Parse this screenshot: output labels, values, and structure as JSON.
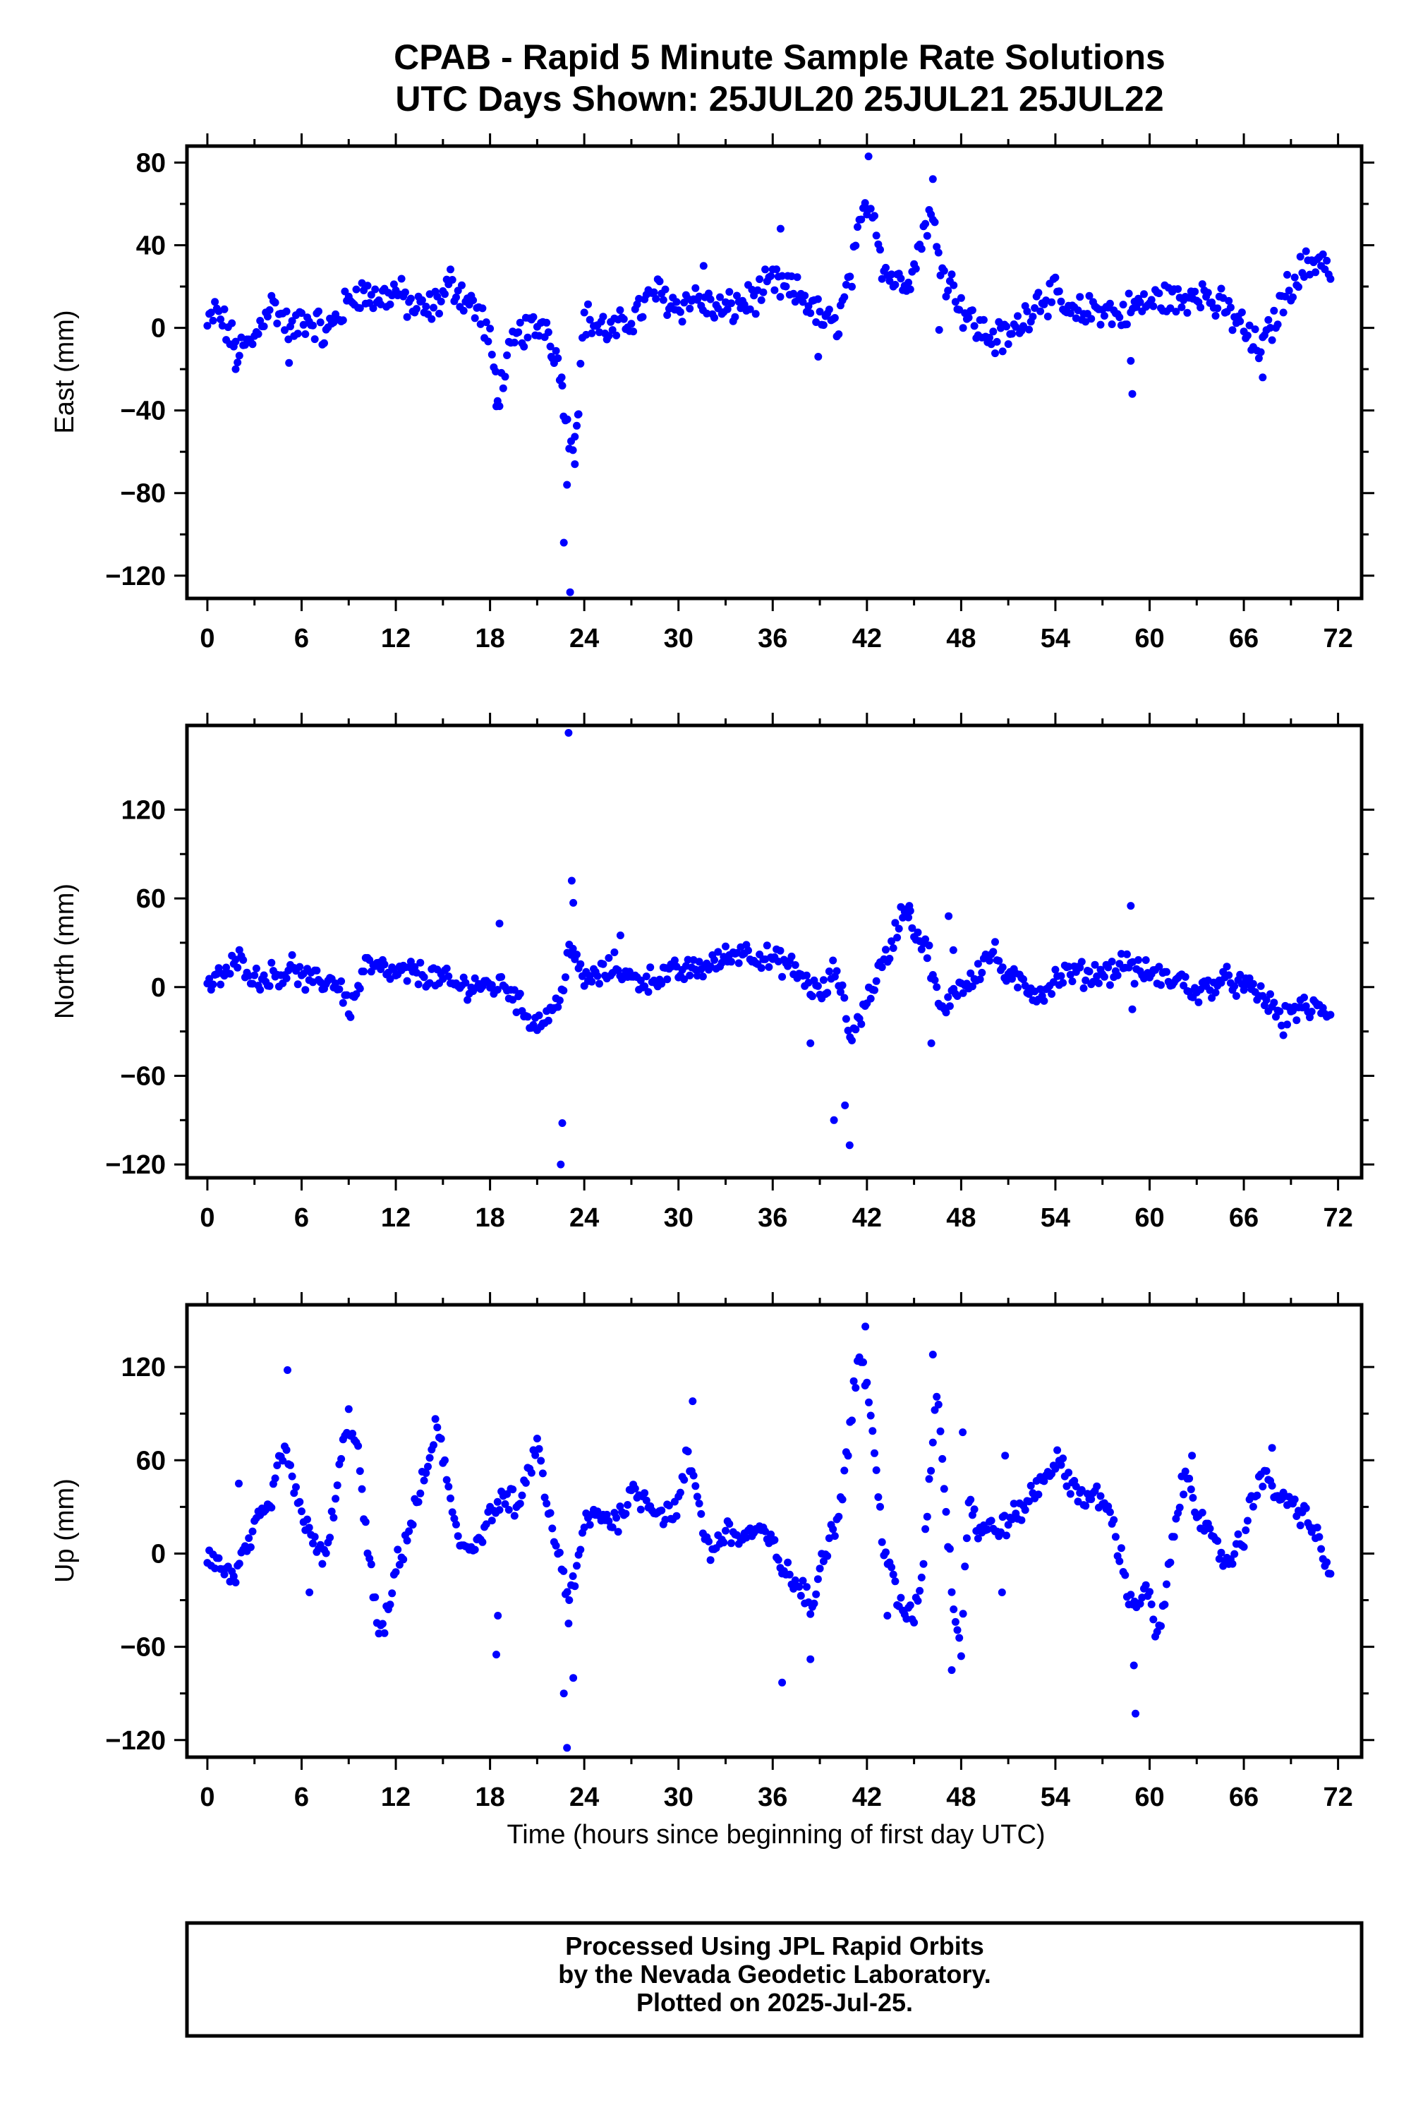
{
  "header": {
    "title_line1": "CPAB - Rapid 5 Minute Sample Rate Solutions",
    "title_line2": "UTC Days Shown:  25JUL20 25JUL21 25JUL22"
  },
  "footer": {
    "line1": "Processed Using JPL Rapid Orbits",
    "line2": "by the Nevada Geodetic Laboratory.",
    "line3": "Plotted on 2025-Jul-25."
  },
  "colors": {
    "points": "#0000ff",
    "frame": "#000000"
  },
  "chart_data": [
    {
      "type": "scatter",
      "title": "",
      "xlabel": "",
      "ylabel": "East (mm)",
      "xlim": [
        -1.3,
        73.5
      ],
      "ylim": [
        -131,
        88
      ],
      "xticks": [
        0,
        6,
        12,
        18,
        24,
        30,
        36,
        42,
        48,
        54,
        60,
        66,
        72
      ],
      "yticks": [
        -120,
        -80,
        -40,
        0,
        40,
        80
      ],
      "yticklabels": [
        "−120",
        "−80",
        "−40",
        "0",
        "40",
        "80"
      ],
      "grid": false,
      "anchors": [
        [
          0,
          0
        ],
        [
          0.5,
          8
        ],
        [
          1,
          3
        ],
        [
          1.5,
          -5
        ],
        [
          2,
          -12
        ],
        [
          2.5,
          -9
        ],
        [
          3,
          -6
        ],
        [
          3.5,
          5
        ],
        [
          4,
          12
        ],
        [
          4.5,
          8
        ],
        [
          5,
          2
        ],
        [
          5.5,
          -3
        ],
        [
          6,
          5
        ],
        [
          7,
          2
        ],
        [
          7.5,
          -5
        ],
        [
          8,
          3
        ],
        [
          9,
          12
        ],
        [
          9.5,
          18
        ],
        [
          10,
          16
        ],
        [
          11,
          14
        ],
        [
          12,
          18
        ],
        [
          13,
          10
        ],
        [
          14,
          8
        ],
        [
          15,
          15
        ],
        [
          15.5,
          22
        ],
        [
          16,
          18
        ],
        [
          17,
          10
        ],
        [
          17.5,
          4
        ],
        [
          18,
          -8
        ],
        [
          18.5,
          -32
        ],
        [
          19,
          -20
        ],
        [
          19.5,
          -8
        ],
        [
          20,
          -2
        ],
        [
          21,
          0
        ],
        [
          21.5,
          3
        ],
        [
          22,
          -8
        ],
        [
          22.5,
          -22
        ],
        [
          23,
          -55
        ],
        [
          23.5,
          -48
        ],
        [
          24,
          5
        ],
        [
          25,
          0
        ],
        [
          26,
          -2
        ],
        [
          27,
          5
        ],
        [
          28,
          12
        ],
        [
          28.5,
          18
        ],
        [
          30,
          10
        ],
        [
          31,
          15
        ],
        [
          32,
          10
        ],
        [
          33,
          8
        ],
        [
          34,
          12
        ],
        [
          35,
          15
        ],
        [
          36,
          22
        ],
        [
          37,
          18
        ],
        [
          38,
          15
        ],
        [
          38.5,
          10
        ],
        [
          39,
          5
        ],
        [
          40,
          0
        ],
        [
          41,
          25
        ],
        [
          41.5,
          45
        ],
        [
          42,
          62
        ],
        [
          42.5,
          55
        ],
        [
          43,
          30
        ],
        [
          43.5,
          25
        ],
        [
          44,
          22
        ],
        [
          45,
          28
        ],
        [
          45.5,
          45
        ],
        [
          46,
          55
        ],
        [
          46.5,
          40
        ],
        [
          47,
          25
        ],
        [
          47.5,
          20
        ],
        [
          48,
          10
        ],
        [
          49,
          0
        ],
        [
          50,
          -5
        ],
        [
          51,
          -5
        ],
        [
          52,
          5
        ],
        [
          53,
          15
        ],
        [
          54,
          15
        ],
        [
          55,
          5
        ],
        [
          56,
          8
        ],
        [
          57,
          10
        ],
        [
          58,
          5
        ],
        [
          58.5,
          8
        ],
        [
          59,
          10
        ],
        [
          60,
          12
        ],
        [
          61,
          15
        ],
        [
          62,
          12
        ],
        [
          63,
          20
        ],
        [
          64,
          12
        ],
        [
          65,
          8
        ],
        [
          66,
          0
        ],
        [
          66.5,
          -8
        ],
        [
          67,
          -10
        ],
        [
          67.5,
          -5
        ],
        [
          68,
          5
        ],
        [
          69,
          22
        ],
        [
          70,
          30
        ],
        [
          71,
          35
        ],
        [
          71.5,
          25
        ]
      ],
      "spikes": [
        [
          1.8,
          -20
        ],
        [
          5.2,
          -17
        ],
        [
          18.4,
          -38
        ],
        [
          21.9,
          -14
        ],
        [
          22.6,
          -28
        ],
        [
          22.7,
          -104
        ],
        [
          22.9,
          -76
        ],
        [
          23.1,
          -128
        ],
        [
          23.4,
          -66
        ],
        [
          23.6,
          -42
        ],
        [
          36.5,
          48
        ],
        [
          38.9,
          -14
        ],
        [
          42.1,
          83
        ],
        [
          46.2,
          72
        ],
        [
          46.6,
          -1
        ],
        [
          58.9,
          -32
        ],
        [
          58.8,
          -16
        ],
        [
          67.2,
          -24
        ],
        [
          31.6,
          30
        ]
      ]
    },
    {
      "type": "scatter",
      "title": "",
      "xlabel": "",
      "ylabel": "North (mm)",
      "xlim": [
        -1.3,
        73.5
      ],
      "ylim": [
        -129,
        177
      ],
      "xticks": [
        0,
        6,
        12,
        18,
        24,
        30,
        36,
        42,
        48,
        54,
        60,
        66,
        72
      ],
      "yticks": [
        -120,
        -60,
        0,
        60,
        120
      ],
      "yticklabels": [
        "−120",
        "−60",
        "0",
        "60",
        "120"
      ],
      "grid": false,
      "anchors": [
        [
          0,
          0
        ],
        [
          1,
          8
        ],
        [
          2,
          18
        ],
        [
          2.5,
          15
        ],
        [
          3,
          5
        ],
        [
          4,
          8
        ],
        [
          5,
          10
        ],
        [
          5.5,
          15
        ],
        [
          6,
          5
        ],
        [
          7,
          3
        ],
        [
          8,
          5
        ],
        [
          8.5,
          0
        ],
        [
          9,
          -15
        ],
        [
          9.5,
          -5
        ],
        [
          10,
          15
        ],
        [
          11,
          12
        ],
        [
          12,
          8
        ],
        [
          13,
          10
        ],
        [
          14,
          8
        ],
        [
          15,
          5
        ],
        [
          16,
          0
        ],
        [
          17,
          2
        ],
        [
          18,
          0
        ],
        [
          19,
          2
        ],
        [
          19.5,
          -5
        ],
        [
          20,
          -15
        ],
        [
          21,
          -25
        ],
        [
          21.5,
          -20
        ],
        [
          22,
          -15
        ],
        [
          22.5,
          -10
        ],
        [
          23,
          30
        ],
        [
          23.5,
          15
        ],
        [
          24,
          5
        ],
        [
          25,
          8
        ],
        [
          26,
          15
        ],
        [
          27,
          5
        ],
        [
          28,
          5
        ],
        [
          29,
          8
        ],
        [
          30,
          10
        ],
        [
          31,
          12
        ],
        [
          32,
          15
        ],
        [
          33,
          20
        ],
        [
          34,
          25
        ],
        [
          35,
          22
        ],
        [
          36,
          18
        ],
        [
          37,
          15
        ],
        [
          37.5,
          10
        ],
        [
          38,
          5
        ],
        [
          39,
          -5
        ],
        [
          39.5,
          0
        ],
        [
          40,
          15
        ],
        [
          40.5,
          -10
        ],
        [
          41,
          -35
        ],
        [
          41.5,
          -20
        ],
        [
          42,
          -10
        ],
        [
          42.5,
          5
        ],
        [
          43,
          15
        ],
        [
          43.5,
          25
        ],
        [
          44,
          45
        ],
        [
          44.5,
          55
        ],
        [
          45,
          40
        ],
        [
          45.5,
          30
        ],
        [
          46,
          20
        ],
        [
          46.5,
          -10
        ],
        [
          47,
          -20
        ],
        [
          47.5,
          0
        ],
        [
          48,
          0
        ],
        [
          49,
          10
        ],
        [
          50,
          25
        ],
        [
          51,
          5
        ],
        [
          52,
          2
        ],
        [
          53,
          -5
        ],
        [
          54,
          5
        ],
        [
          55,
          10
        ],
        [
          56,
          8
        ],
        [
          57,
          10
        ],
        [
          58,
          12
        ],
        [
          58.5,
          20
        ],
        [
          59,
          10
        ],
        [
          60,
          10
        ],
        [
          61,
          5
        ],
        [
          62,
          5
        ],
        [
          63,
          -5
        ],
        [
          64,
          2
        ],
        [
          65,
          5
        ],
        [
          66,
          0
        ],
        [
          67,
          -5
        ],
        [
          68,
          -15
        ],
        [
          68.5,
          -25
        ],
        [
          69,
          -15
        ],
        [
          70,
          -15
        ],
        [
          71,
          -15
        ],
        [
          71.5,
          -18
        ]
      ],
      "spikes": [
        [
          18.6,
          43
        ],
        [
          22.6,
          -92
        ],
        [
          22.5,
          -120
        ],
        [
          23.0,
          172
        ],
        [
          23.2,
          72
        ],
        [
          23.3,
          57
        ],
        [
          26.3,
          35
        ],
        [
          38.4,
          -38
        ],
        [
          39.9,
          -90
        ],
        [
          40.6,
          -80
        ],
        [
          40.9,
          -107
        ],
        [
          44.7,
          55
        ],
        [
          46.1,
          -38
        ],
        [
          47.2,
          48
        ],
        [
          47.5,
          25
        ],
        [
          58.8,
          55
        ],
        [
          58.9,
          -15
        ]
      ]
    },
    {
      "type": "scatter",
      "title": "",
      "xlabel": "Time (hours since beginning of first day UTC)",
      "ylabel": "Up (mm)",
      "xlim": [
        -1.3,
        73.5
      ],
      "ylim": [
        -131,
        160
      ],
      "xticks": [
        0,
        6,
        12,
        18,
        24,
        30,
        36,
        42,
        48,
        54,
        60,
        66,
        72
      ],
      "yticks": [
        -120,
        -60,
        0,
        60,
        120
      ],
      "yticklabels": [
        "−120",
        "−60",
        "0",
        "60",
        "120"
      ],
      "grid": false,
      "anchors": [
        [
          0,
          0
        ],
        [
          1,
          -10
        ],
        [
          1.5,
          -15
        ],
        [
          2,
          -10
        ],
        [
          3,
          15
        ],
        [
          4,
          30
        ],
        [
          4.5,
          55
        ],
        [
          5,
          70
        ],
        [
          5.5,
          40
        ],
        [
          6,
          25
        ],
        [
          6.5,
          20
        ],
        [
          7,
          0
        ],
        [
          7.5,
          -5
        ],
        [
          8,
          25
        ],
        [
          8.5,
          60
        ],
        [
          9,
          85
        ],
        [
          9.5,
          75
        ],
        [
          10,
          20
        ],
        [
          10.5,
          -20
        ],
        [
          11,
          -55
        ],
        [
          11.5,
          -40
        ],
        [
          12,
          -10
        ],
        [
          13,
          20
        ],
        [
          14,
          55
        ],
        [
          14.5,
          80
        ],
        [
          15,
          65
        ],
        [
          15.5,
          30
        ],
        [
          16,
          5
        ],
        [
          17,
          5
        ],
        [
          18,
          25
        ],
        [
          19,
          35
        ],
        [
          20,
          30
        ],
        [
          20.5,
          55
        ],
        [
          21,
          70
        ],
        [
          21.5,
          40
        ],
        [
          22,
          10
        ],
        [
          22.5,
          -5
        ],
        [
          23,
          -30
        ],
        [
          23.5,
          -15
        ],
        [
          24,
          20
        ],
        [
          25,
          25
        ],
        [
          26,
          20
        ],
        [
          27,
          40
        ],
        [
          28,
          35
        ],
        [
          29,
          25
        ],
        [
          30,
          30
        ],
        [
          30.5,
          60
        ],
        [
          31,
          50
        ],
        [
          31.5,
          20
        ],
        [
          32,
          0
        ],
        [
          33,
          15
        ],
        [
          34,
          10
        ],
        [
          35,
          15
        ],
        [
          36,
          5
        ],
        [
          37,
          -15
        ],
        [
          38,
          -25
        ],
        [
          38.5,
          -40
        ],
        [
          39,
          -5
        ],
        [
          40,
          20
        ],
        [
          40.5,
          45
        ],
        [
          41,
          90
        ],
        [
          41.5,
          130
        ],
        [
          42,
          110
        ],
        [
          42.5,
          60
        ],
        [
          43,
          10
        ],
        [
          43.5,
          -10
        ],
        [
          44,
          -35
        ],
        [
          45,
          -40
        ],
        [
          45.5,
          -15
        ],
        [
          46,
          50
        ],
        [
          46.5,
          110
        ],
        [
          47,
          30
        ],
        [
          47.5,
          -30
        ],
        [
          48,
          -60
        ],
        [
          48.5,
          40
        ],
        [
          49,
          15
        ],
        [
          50,
          15
        ],
        [
          51,
          20
        ],
        [
          52,
          30
        ],
        [
          53,
          45
        ],
        [
          54,
          60
        ],
        [
          55,
          45
        ],
        [
          56,
          35
        ],
        [
          57,
          35
        ],
        [
          57.5,
          25
        ],
        [
          58,
          5
        ],
        [
          58.5,
          -20
        ],
        [
          59,
          -35
        ],
        [
          59.5,
          -25
        ],
        [
          60,
          -30
        ],
        [
          60.5,
          -55
        ],
        [
          61,
          -30
        ],
        [
          61.5,
          10
        ],
        [
          62,
          40
        ],
        [
          62.5,
          50
        ],
        [
          63,
          30
        ],
        [
          64,
          5
        ],
        [
          65,
          -5
        ],
        [
          66,
          10
        ],
        [
          66.5,
          35
        ],
        [
          67,
          50
        ],
        [
          68,
          40
        ],
        [
          69,
          30
        ],
        [
          70,
          25
        ],
        [
          71,
          0
        ],
        [
          71.5,
          -15
        ]
      ],
      "spikes": [
        [
          2,
          45
        ],
        [
          5.1,
          118
        ],
        [
          6.5,
          -25
        ],
        [
          18.4,
          -65
        ],
        [
          18.5,
          -40
        ],
        [
          22.7,
          -90
        ],
        [
          22.9,
          -125
        ],
        [
          23.3,
          -80
        ],
        [
          23.0,
          -45
        ],
        [
          30.9,
          98
        ],
        [
          36.6,
          -83
        ],
        [
          38.4,
          -68
        ],
        [
          41.9,
          146
        ],
        [
          43.3,
          -40
        ],
        [
          46.2,
          128
        ],
        [
          47.4,
          -75
        ],
        [
          48.1,
          78
        ],
        [
          50.6,
          -25
        ],
        [
          50.8,
          63
        ],
        [
          59.1,
          -103
        ],
        [
          59.0,
          -72
        ],
        [
          62.7,
          63
        ],
        [
          67.8,
          68
        ]
      ]
    }
  ]
}
